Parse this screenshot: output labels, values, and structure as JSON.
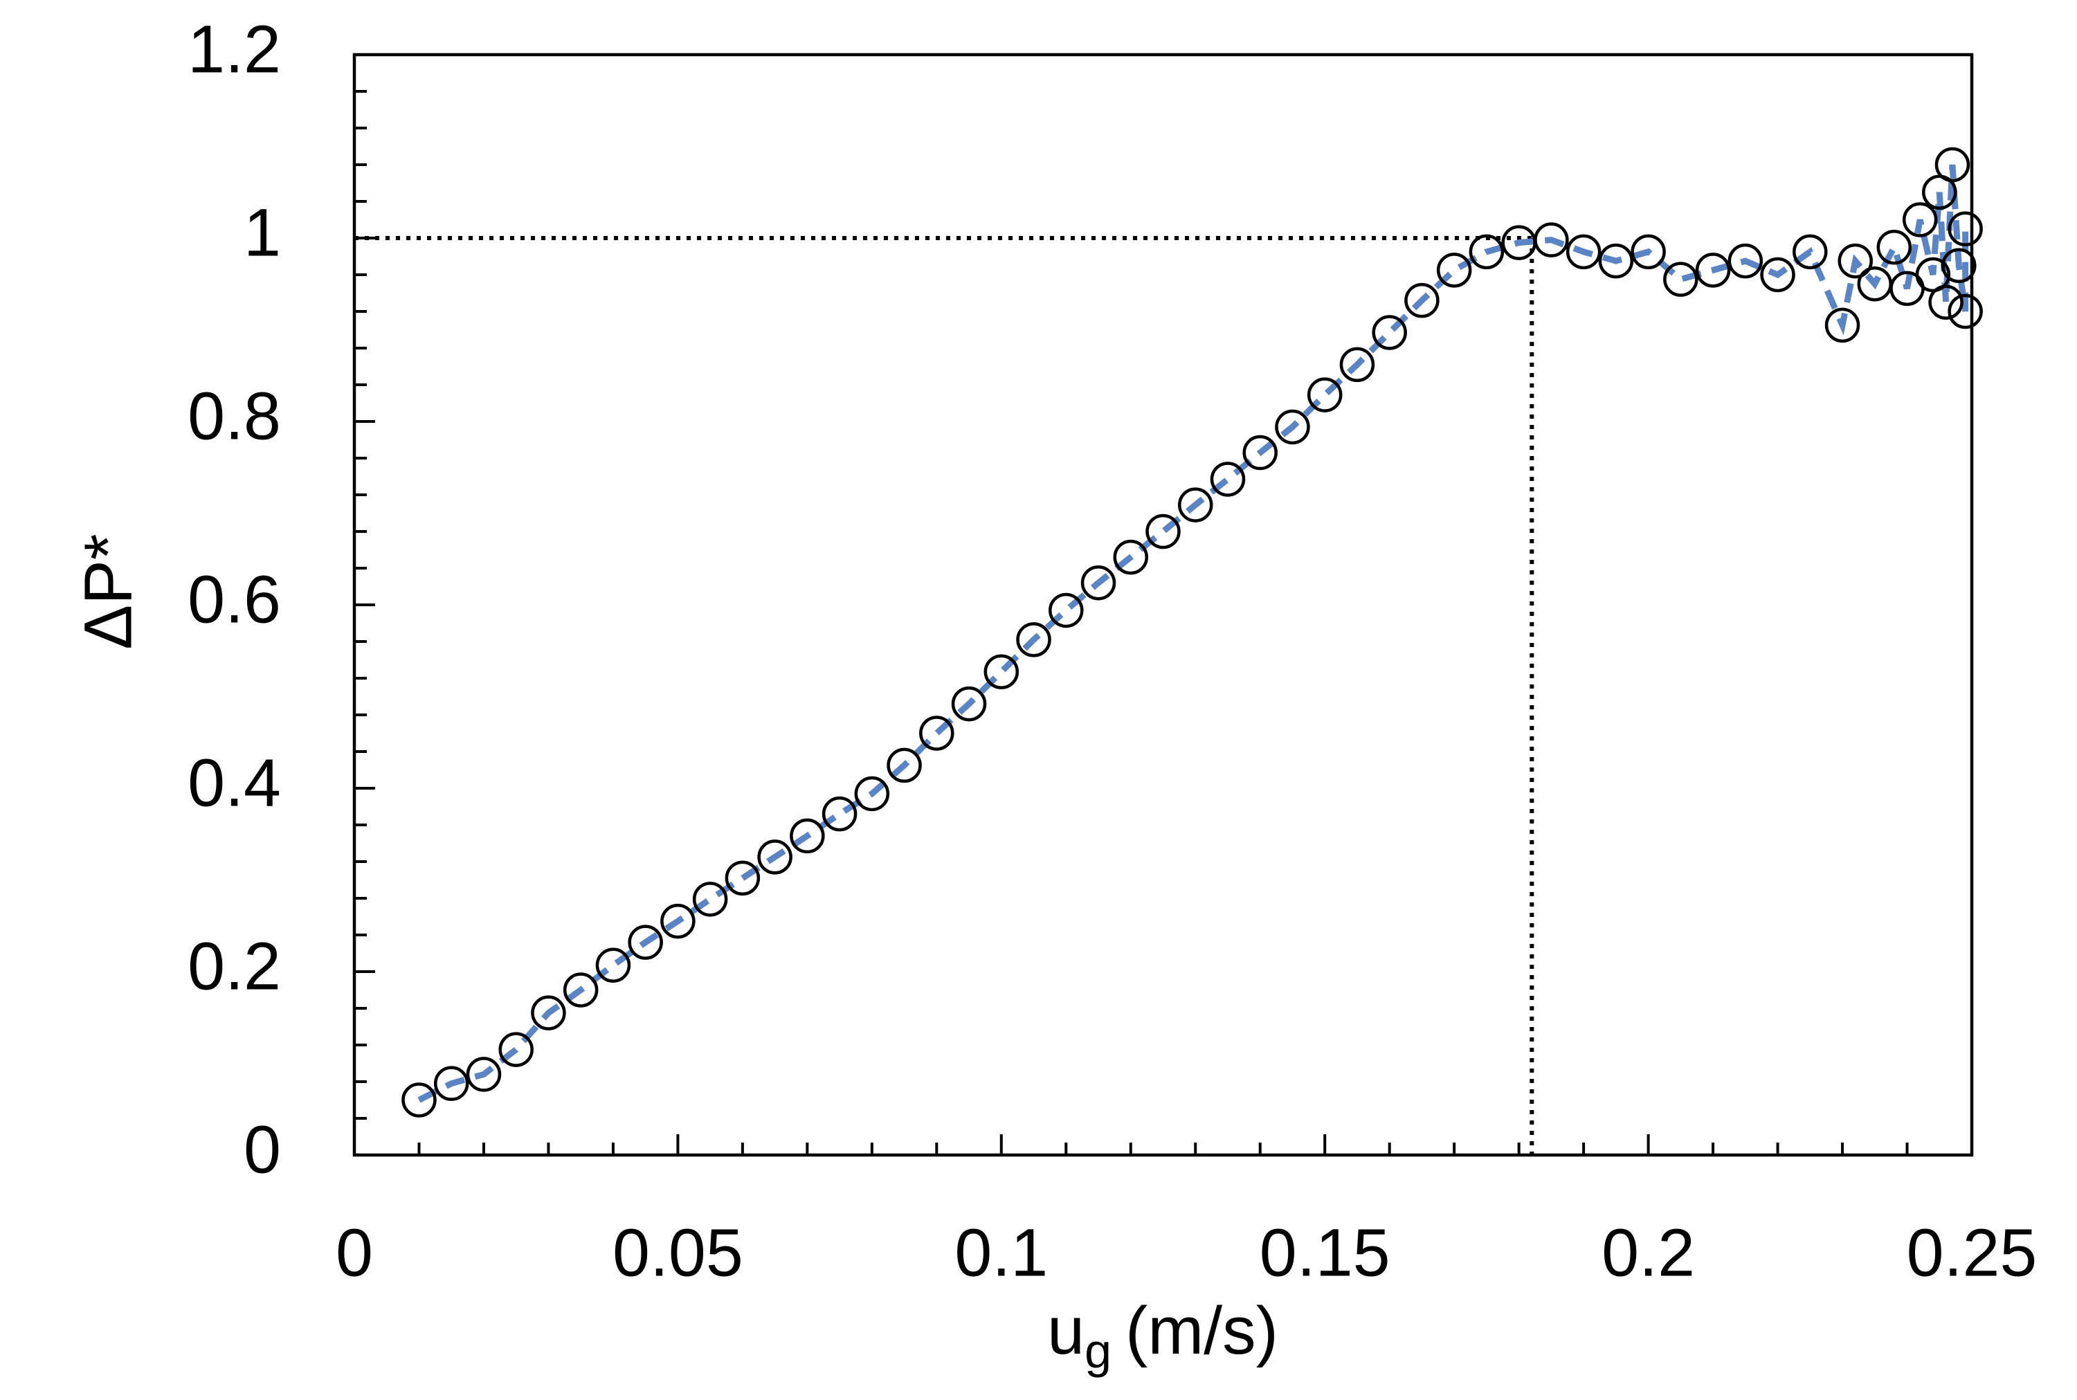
{
  "chart_data": {
    "type": "scatter",
    "xlabel_main": "u",
    "xlabel_sub": "g",
    "xlabel_unit": "(m/s)",
    "ylabel": "ΔP*",
    "xlim": [
      0,
      0.25
    ],
    "xticks": [
      0,
      0.05,
      0.1,
      0.15,
      0.2,
      0.25
    ],
    "ylim": [
      0,
      1.2
    ],
    "yticks": [
      0,
      0.2,
      0.4,
      0.6,
      0.8,
      1,
      1.2
    ],
    "xminorticks": [
      0.01,
      0.02,
      0.03,
      0.04,
      0.06,
      0.07,
      0.08,
      0.09,
      0.11,
      0.12,
      0.13,
      0.14,
      0.16,
      0.17,
      0.18,
      0.19,
      0.21,
      0.22,
      0.23,
      0.24
    ],
    "yminorticks": [
      0.04,
      0.08,
      0.12,
      0.16,
      0.24,
      0.28,
      0.32,
      0.36,
      0.44,
      0.48,
      0.52,
      0.56,
      0.64,
      0.68,
      0.72,
      0.76,
      0.84,
      0.88,
      0.92,
      0.96,
      1.04,
      1.08,
      1.12,
      1.16
    ],
    "reference": {
      "x": 0.182,
      "y": 1
    },
    "marker_color": "#000000",
    "line_color": "#5b84c4",
    "x": [
      0.01,
      0.015,
      0.02,
      0.025,
      0.03,
      0.035,
      0.04,
      0.045,
      0.05,
      0.055,
      0.06,
      0.065,
      0.07,
      0.075,
      0.08,
      0.085,
      0.09,
      0.095,
      0.1,
      0.105,
      0.11,
      0.115,
      0.12,
      0.125,
      0.13,
      0.135,
      0.14,
      0.145,
      0.15,
      0.155,
      0.16,
      0.165,
      0.17,
      0.175,
      0.18,
      0.185,
      0.19,
      0.195,
      0.2,
      0.205,
      0.21,
      0.215,
      0.22,
      0.225,
      0.23,
      0.232,
      0.235,
      0.238,
      0.24,
      0.242,
      0.244,
      0.245,
      0.246,
      0.247,
      0.248,
      0.249,
      0.249
    ],
    "values": [
      0.06,
      0.078,
      0.088,
      0.115,
      0.155,
      0.18,
      0.207,
      0.232,
      0.255,
      0.279,
      0.302,
      0.325,
      0.348,
      0.372,
      0.394,
      0.425,
      0.46,
      0.492,
      0.527,
      0.562,
      0.594,
      0.624,
      0.652,
      0.68,
      0.709,
      0.737,
      0.766,
      0.794,
      0.829,
      0.862,
      0.897,
      0.932,
      0.965,
      0.985,
      0.995,
      0.998,
      0.985,
      0.975,
      0.985,
      0.955,
      0.965,
      0.975,
      0.96,
      0.985,
      0.905,
      0.975,
      0.95,
      0.99,
      0.945,
      1.02,
      0.96,
      1.05,
      0.93,
      1.08,
      0.97,
      0.92,
      1.01
    ]
  }
}
